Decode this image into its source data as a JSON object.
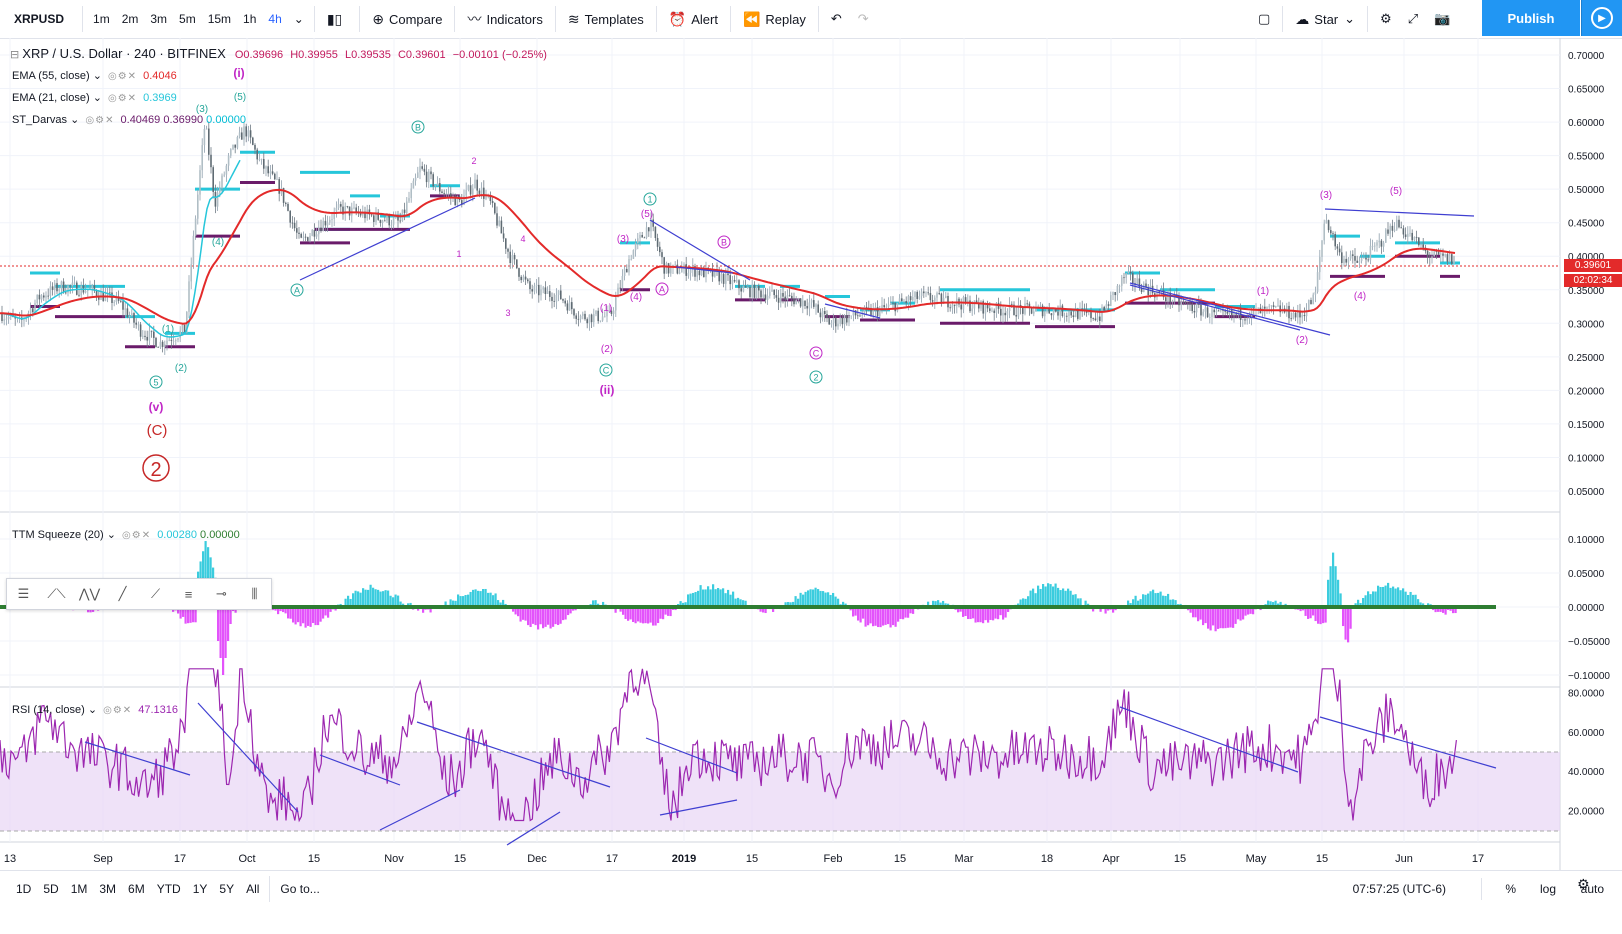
{
  "toolbar": {
    "symbol": "XRPUSD",
    "intervals": [
      "1m",
      "2m",
      "3m",
      "5m",
      "15m",
      "1h",
      "4h"
    ],
    "active_interval": "4h",
    "compare": "Compare",
    "indicators": "Indicators",
    "templates": "Templates",
    "alert": "Alert",
    "replay": "Replay",
    "star": "Star",
    "publish": "Publish"
  },
  "legend": {
    "title": "XRP / U.S. Dollar · 240 · BITFINEX",
    "open": "O0.39696",
    "high": "H0.39955",
    "low": "L0.39535",
    "close": "C0.39601",
    "change": "−0.00101 (−0.25%)",
    "ema55_label": "EMA (55, close)",
    "ema55_value": "0.4046",
    "ema21_label": "EMA (21, close)",
    "ema21_value": "0.3969",
    "darvas_label": "ST_Darvas",
    "darvas_v1": "0.40469",
    "darvas_v2": "0.36990",
    "darvas_v3": "0.00000",
    "ttm_label": "TTM Squeeze (20)",
    "ttm_v1": "0.00280",
    "ttm_v2": "0.00000",
    "rsi_label": "RSI (14, close)",
    "rsi_value": "47.1316"
  },
  "price_axis": {
    "main": [
      "0.70000",
      "0.65000",
      "0.60000",
      "0.55000",
      "0.50000",
      "0.45000",
      "0.40000",
      "0.35000",
      "0.30000",
      "0.25000",
      "0.20000",
      "0.15000",
      "0.10000",
      "0.05000"
    ],
    "last_price": "0.39601",
    "countdown": "02:02:34",
    "ttm": [
      "0.10000",
      "0.05000",
      "0.00000",
      "−0.05000",
      "−0.10000"
    ],
    "rsi": [
      "80.0000",
      "60.0000",
      "40.0000",
      "20.0000"
    ]
  },
  "time_axis": [
    "13",
    "Sep",
    "17",
    "Oct",
    "15",
    "Nov",
    "15",
    "Dec",
    "17",
    "2019",
    "15",
    "Feb",
    "15",
    "Mar",
    "18",
    "Apr",
    "15",
    "May",
    "15",
    "Jun",
    "17"
  ],
  "wave_labels": {
    "i": "(i)",
    "ii": "(ii)",
    "v": "(v)",
    "C": "(C)",
    "two": "2",
    "A": "A",
    "B": "B",
    "C_small": "C",
    "one": "1",
    "three": "3",
    "four": "4",
    "five": "5",
    "two_small": "2",
    "p1": "(1)",
    "p2": "(2)",
    "p3": "(3)",
    "p4": "(4)",
    "p5": "(5)"
  },
  "chart_data": {
    "type": "line",
    "title": "XRP / U.S. Dollar · 240 · BITFINEX",
    "x": [
      "13",
      "Sep",
      "17",
      "Oct",
      "15",
      "Nov",
      "15",
      "Dec",
      "17",
      "2019",
      "15",
      "Feb",
      "15",
      "Mar",
      "18",
      "Apr",
      "15",
      "May",
      "15",
      "Jun"
    ],
    "series": [
      {
        "name": "EMA (55, close)",
        "values": [
          0.33,
          0.3,
          0.28,
          0.53,
          0.4,
          0.47,
          0.48,
          0.34,
          0.32,
          0.38,
          0.32,
          0.31,
          0.32,
          0.32,
          0.31,
          0.35,
          0.32,
          0.31,
          0.44,
          0.41
        ]
      },
      {
        "name": "RSI (14, close)",
        "values": [
          55,
          45,
          70,
          40,
          60,
          60,
          45,
          50,
          65,
          45,
          50,
          55,
          50,
          50,
          45,
          75,
          45,
          40,
          70,
          47
        ]
      }
    ],
    "ylim": [
      0.05,
      0.7
    ]
  },
  "bottom": {
    "ranges": [
      "1D",
      "5D",
      "1M",
      "3M",
      "6M",
      "YTD",
      "1Y",
      "5Y",
      "All"
    ],
    "goto": "Go to...",
    "clock": "07:57:25 (UTC-6)",
    "percent": "%",
    "log": "log",
    "auto": "auto"
  },
  "colors": {
    "ema55": "#e32a2a",
    "ema21": "#26c6da",
    "darvas_top": "#00bcd4",
    "darvas_bot": "#6a1b6a",
    "rsi": "#9c27b0",
    "wave_green": "#26a69a",
    "wave_purple": "#c026c6",
    "trend": "#3f3fd1"
  }
}
